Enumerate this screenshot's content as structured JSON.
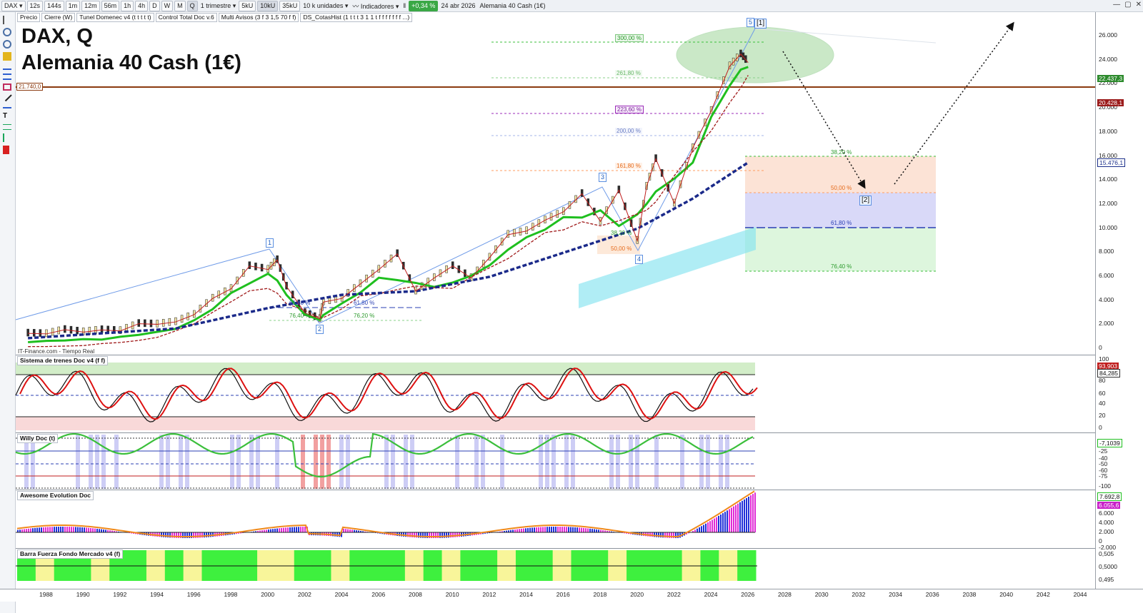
{
  "toolbar": {
    "symbol": "DAX",
    "periods": [
      "12s",
      "144s",
      "1m",
      "12m",
      "56m",
      "1h",
      "4h",
      "D",
      "W",
      "M",
      "Q"
    ],
    "active_period": "Q",
    "timeframe": "1 trimestre",
    "units": [
      "5kU",
      "10kU",
      "35kU"
    ],
    "units_dropdown": "10 k unidades",
    "indicators_label": "Indicadores",
    "change_pct": "+0,34 %",
    "date": "24 abr 2026",
    "instrument": "Alemania 40 Cash (1€)"
  },
  "chips": [
    "Precio",
    "Cierre (W)",
    "Tunel Domenec v4 (t t t t t)",
    "Control Total Doc v.6",
    "Multi Avisos (3 f 3 1,5 70 f f)",
    "DS_CotasHist (1 t t t 3 1 1 t f f f f f f f ...)"
  ],
  "chart_title": {
    "line1": "DAX, Q",
    "line2": "Alemania 40 Cash (1€)"
  },
  "source": "IT-Finance.com - Tiempo Real",
  "horizontal_level": {
    "value": "21.740,0",
    "color": "#8b3a0f"
  },
  "price_axis_labels": [
    "26.000",
    "24.000",
    "22.000",
    "20.000",
    "18.000",
    "16.000",
    "14.000",
    "12.000",
    "10.000",
    "8.000",
    "6.000",
    "4.000",
    "2.000",
    "0"
  ],
  "price_tags": [
    {
      "text": "22.437,3",
      "color": "#2c8a2c"
    },
    {
      "text": "20.428,1",
      "color": "#9b1b1b"
    },
    {
      "text": "15.476,1",
      "color": "#1b2f8a"
    }
  ],
  "fib_upper": [
    "300,00 %",
    "261,80 %",
    "223,60 %",
    "200,00 %",
    "161,80 %"
  ],
  "fib_retrace": [
    "38,20 %",
    "50,00 %",
    "61,80 %",
    "76,40 %"
  ],
  "fib_small": [
    "61,80 %",
    "76,40 %",
    "61,80 %",
    "76,20 %",
    "38,20 %",
    "50,00 %"
  ],
  "waves": [
    "1",
    "2",
    "3",
    "4",
    "5"
  ],
  "wave_labels": [
    "[1]",
    "[2]"
  ],
  "panels": [
    {
      "name": "Sistema de trenes Doc v4 (f f)",
      "axis": [
        "100",
        "80",
        "60",
        "40",
        "20",
        "0"
      ],
      "tags": [
        "93,903",
        "84,285"
      ]
    },
    {
      "name": "Willy Doc (t)",
      "axis": [
        "-25",
        "-40",
        "-50",
        "-60",
        "-75",
        "-100"
      ],
      "tags": [
        "-7,1039"
      ]
    },
    {
      "name": "Awesome Evolution Doc",
      "axis": [
        "6.000",
        "4.000",
        "2.000",
        "0",
        "-2.000"
      ],
      "tags": [
        "7.692,8",
        "6.055,6"
      ]
    },
    {
      "name": "Barra Fuerza Fondo Mercado v4 (f)",
      "axis": [
        "0,505",
        "0,5000",
        "0,495"
      ],
      "tags": []
    }
  ],
  "x_axis_years": [
    "1988",
    "1990",
    "1992",
    "1994",
    "1996",
    "1998",
    "2000",
    "2002",
    "2004",
    "2006",
    "2008",
    "2010",
    "2012",
    "2014",
    "2016",
    "2018",
    "2020",
    "2022",
    "2024",
    "2026",
    "2028",
    "2030",
    "2032",
    "2034",
    "2036",
    "2038",
    "2040",
    "2042",
    "2044"
  ],
  "colors": {
    "up": "#2c9a2c",
    "down": "#b01717",
    "ema": "#1fbf1f",
    "trend": "#1b2a8a",
    "ellipse": "#9fd79a"
  }
}
